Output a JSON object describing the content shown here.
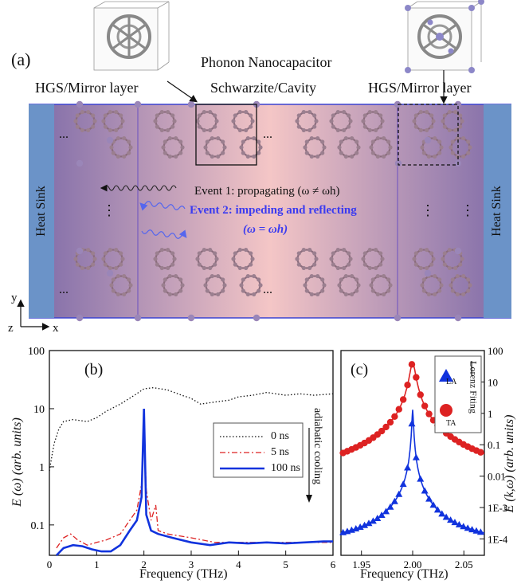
{
  "panel_a": {
    "label": "(a)",
    "title": "Phonon Nanocapacitor",
    "left_layer": "HGS/Mirror layer",
    "cavity": "Schwarzite/Cavity",
    "right_layer": "HGS/Mirror layer",
    "heat_sink": "Heat Sink",
    "ellipsis": "...",
    "vdots": "⋮",
    "event1": "Event 1: propagating (ω ≠ ωh)",
    "event2_line1": "Event 2: impeding and reflecting",
    "event2_line2": "(ω = ωh)",
    "axis_y": "y",
    "axis_z": "z",
    "axis_x": "x",
    "colors": {
      "left": "#7d6aa8",
      "center": "#f4c6c6",
      "heat_sink": "#6b93c8",
      "wave_black": "#222222",
      "wave_blue": "#5566ee"
    }
  },
  "panel_b": {
    "label": "(b)",
    "ylabel": "E (ω) (arb. units)",
    "xlabel": "Frequency (THz)",
    "side_label": "adiabatic cooling",
    "legend": [
      "0 ns",
      "5 ns",
      "100 ns"
    ]
  },
  "panel_c": {
    "label": "(c)",
    "ylabel": "E (k,ω) (arb. units)",
    "xlabel": "Frequency (THz)",
    "legend_fit": "Lorenz Fiting",
    "legend_la": "LA",
    "legend_ta": "TA"
  },
  "chart_data": [
    {
      "type": "line",
      "panel": "b",
      "xlabel": "Frequency (THz)",
      "ylabel": "E (ω) (arb. units)",
      "xlim": [
        0,
        6
      ],
      "ylim": [
        0.03,
        100
      ],
      "yscale": "log",
      "xticks": [
        0,
        1,
        2,
        3,
        4,
        5,
        6
      ],
      "yticks": [
        0.1,
        1,
        10,
        100
      ],
      "ytick_labels": [
        "0.1",
        "1",
        "10",
        "100"
      ],
      "series": [
        {
          "name": "0 ns",
          "color": "#111111",
          "style": "dotted",
          "x": [
            0,
            0.05,
            0.1,
            0.2,
            0.3,
            0.5,
            0.8,
            1.0,
            1.2,
            1.5,
            1.8,
            2.0,
            2.2,
            2.5,
            2.8,
            3.0,
            3.2,
            3.5,
            3.8,
            4.0,
            4.3,
            4.6,
            5.0,
            5.3,
            5.6,
            6.0
          ],
          "y": [
            0.85,
            1.5,
            2.5,
            4.5,
            6,
            6.5,
            6,
            7,
            9,
            12,
            17,
            22,
            23,
            21,
            17,
            15,
            12,
            13,
            14,
            16,
            17,
            19,
            17,
            18,
            17,
            18
          ]
        },
        {
          "name": "5 ns",
          "color": "#dd2222",
          "style": "dashdot",
          "x": [
            0.15,
            0.3,
            0.45,
            0.6,
            0.8,
            1.0,
            1.2,
            1.5,
            1.7,
            1.85,
            1.95,
            2.0,
            2.05,
            2.15,
            2.25,
            2.3,
            2.5,
            3.0,
            3.5,
            4.0,
            4.5,
            5.0,
            5.5,
            6.0
          ],
          "y": [
            0.04,
            0.06,
            0.07,
            0.055,
            0.045,
            0.05,
            0.055,
            0.07,
            0.12,
            0.18,
            0.5,
            8,
            0.4,
            0.12,
            0.22,
            0.08,
            0.07,
            0.06,
            0.05,
            0.05,
            0.05,
            0.05,
            0.05,
            0.05
          ]
        },
        {
          "name": "100 ns",
          "color": "#1133dd",
          "style": "solid",
          "x": [
            0.15,
            0.3,
            0.5,
            0.7,
            0.9,
            1.1,
            1.3,
            1.5,
            1.7,
            1.85,
            1.95,
            2.0,
            2.05,
            2.15,
            2.3,
            2.6,
            3.0,
            3.4,
            3.8,
            4.2,
            4.6,
            5.0,
            5.4,
            5.8,
            6.0
          ],
          "y": [
            0.03,
            0.04,
            0.045,
            0.043,
            0.038,
            0.035,
            0.035,
            0.045,
            0.08,
            0.12,
            0.3,
            10,
            0.15,
            0.08,
            0.07,
            0.06,
            0.05,
            0.045,
            0.05,
            0.048,
            0.05,
            0.048,
            0.05,
            0.052,
            0.052
          ]
        }
      ]
    },
    {
      "type": "scatter",
      "panel": "c",
      "xlabel": "Frequency (THz)",
      "ylabel": "E (k,ω) (arb. units)",
      "xlim": [
        1.93,
        2.07
      ],
      "ylim": [
        3e-05,
        100
      ],
      "yscale": "log",
      "xticks": [
        1.95,
        2.0,
        2.05
      ],
      "xtick_labels": [
        "1.95",
        "2.00",
        "2.05"
      ],
      "yticks": [
        0.0001,
        0.001,
        0.01,
        0.1,
        1,
        10,
        100
      ],
      "ytick_labels": [
        "1E-4",
        "1E-3",
        "0.01",
        "0.1",
        "1",
        "10",
        "100"
      ],
      "series": [
        {
          "name": "TA",
          "color": "#dd2222",
          "marker": "circle",
          "fit_gamma": 0.0025,
          "fit_peak": 40,
          "fit_offset": 0.00065
        },
        {
          "name": "LA",
          "color": "#1133dd",
          "marker": "triangle",
          "fit_gamma": 0.0006,
          "fit_peak": 1.3,
          "fit_offset": 6e-05
        }
      ]
    }
  ]
}
